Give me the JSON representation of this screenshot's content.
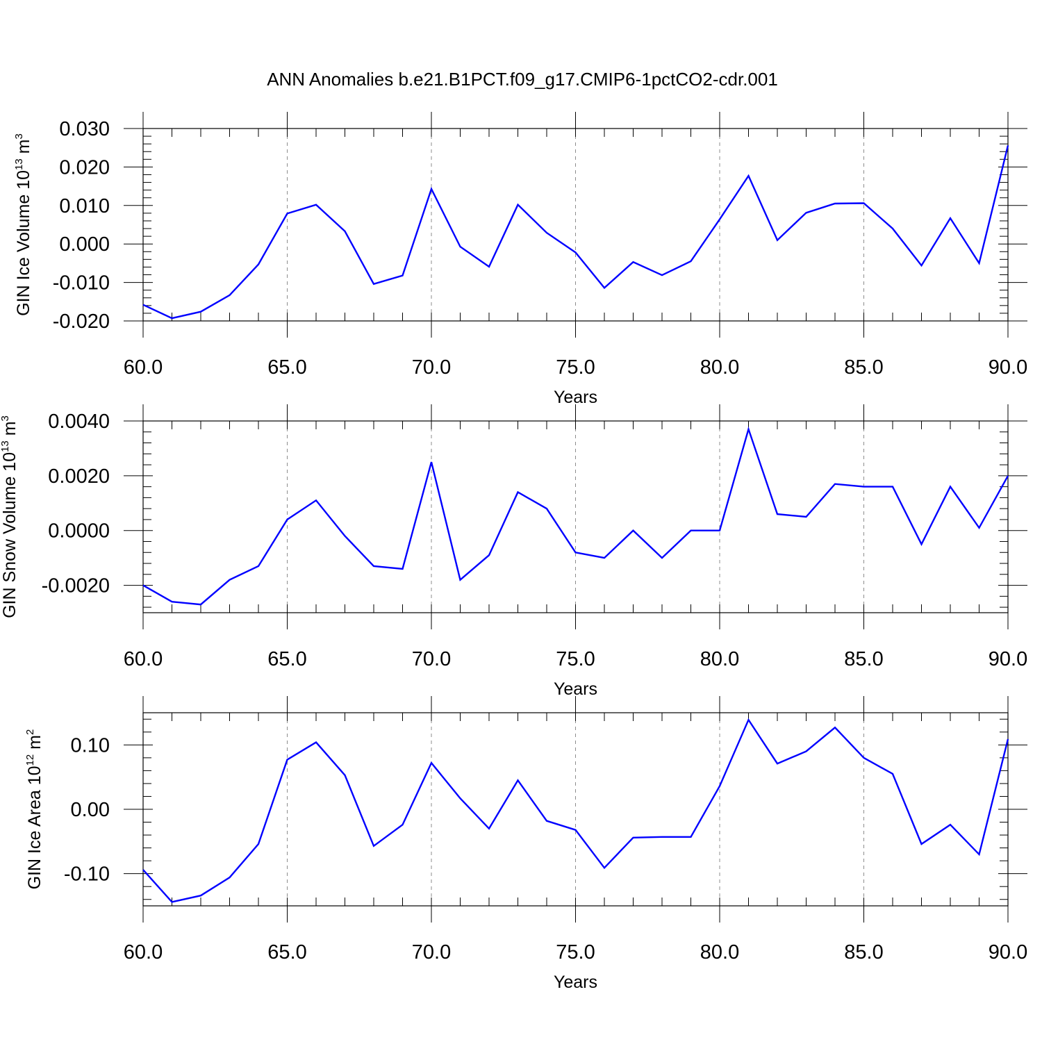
{
  "title": "ANN Anomalies b.e21.B1PCT.f09_g17.CMIP6-1pctCO2-cdr.001",
  "colors": {
    "line": "#0000ff",
    "grid": "#8c8c8c",
    "axis": "#000000"
  },
  "chart_data": [
    {
      "type": "line",
      "xlabel": "Years",
      "ylabel": {
        "main": "GIN Ice Volume 10",
        "exp1": "13",
        "unit": " m",
        "exp2": "3"
      },
      "xlim": [
        60,
        90
      ],
      "ylim": [
        -0.02,
        0.03
      ],
      "xticks": [
        60,
        65,
        70,
        75,
        80,
        85,
        90
      ],
      "xtick_labels": [
        "60.0",
        "65.0",
        "70.0",
        "75.0",
        "80.0",
        "85.0",
        "90.0"
      ],
      "yticks": [
        -0.02,
        -0.01,
        0.0,
        0.01,
        0.02,
        0.03
      ],
      "ytick_labels": [
        "-0.020",
        "-0.010",
        "0.000",
        "0.010",
        "0.020",
        "0.030"
      ],
      "grid": "vertical dashed at major x ticks",
      "x": [
        60,
        61,
        62,
        63,
        64,
        65,
        66,
        67,
        68,
        69,
        70,
        71,
        72,
        73,
        74,
        75,
        76,
        77,
        78,
        79,
        80,
        81,
        82,
        83,
        84,
        85,
        86,
        87,
        88,
        89,
        90
      ],
      "y": [
        -0.0158,
        -0.0193,
        -0.0176,
        -0.0133,
        -0.0053,
        0.0079,
        0.0102,
        0.0033,
        -0.0104,
        -0.0082,
        0.0143,
        -0.0007,
        -0.0059,
        0.0102,
        0.0029,
        -0.0022,
        -0.0114,
        -0.0047,
        -0.0081,
        -0.0045,
        0.0064,
        0.0177,
        0.001,
        0.0081,
        0.0105,
        0.0106,
        0.004,
        -0.0056,
        0.0067,
        -0.005,
        0.0256
      ]
    },
    {
      "type": "line",
      "xlabel": "Years",
      "ylabel": {
        "main": "GIN Snow Volume 10",
        "exp1": "13",
        "unit": " m",
        "exp2": "3"
      },
      "xlim": [
        60,
        90
      ],
      "ylim": [
        -0.003,
        0.004
      ],
      "xticks": [
        60,
        65,
        70,
        75,
        80,
        85,
        90
      ],
      "xtick_labels": [
        "60.0",
        "65.0",
        "70.0",
        "75.0",
        "80.0",
        "85.0",
        "90.0"
      ],
      "yticks": [
        -0.002,
        0.0,
        0.002,
        0.004
      ],
      "ytick_labels": [
        "-0.0020",
        "0.0000",
        "0.0020",
        "0.0040"
      ],
      "grid": "vertical dashed at major x ticks",
      "x": [
        60,
        61,
        62,
        63,
        64,
        65,
        66,
        67,
        68,
        69,
        70,
        71,
        72,
        73,
        74,
        75,
        76,
        77,
        78,
        79,
        80,
        81,
        82,
        83,
        84,
        85,
        86,
        87,
        88,
        89,
        90
      ],
      "y": [
        -0.002,
        -0.0026,
        -0.0027,
        -0.0018,
        -0.0013,
        0.0004,
        0.0011,
        -0.0002,
        -0.0013,
        -0.0014,
        0.0025,
        -0.0018,
        -0.0009,
        0.0014,
        0.0008,
        -0.0008,
        -0.001,
        0.0,
        -0.001,
        -0.0,
        0.0,
        0.0037,
        0.0006,
        0.0005,
        0.0017,
        0.0016,
        0.0016,
        -0.0005,
        0.0016,
        0.0001,
        0.002
      ]
    },
    {
      "type": "line",
      "xlabel": "Years",
      "ylabel": {
        "main": "GIN Ice Area 10",
        "exp1": "12",
        "unit": " m",
        "exp2": "2"
      },
      "xlim": [
        60,
        90
      ],
      "ylim": [
        -0.15,
        0.15
      ],
      "xticks": [
        60,
        65,
        70,
        75,
        80,
        85,
        90
      ],
      "xtick_labels": [
        "60.0",
        "65.0",
        "70.0",
        "75.0",
        "80.0",
        "85.0",
        "90.0"
      ],
      "yticks": [
        -0.1,
        0.0,
        0.1
      ],
      "ytick_labels": [
        "-0.10",
        "0.00",
        "0.10"
      ],
      "grid": "vertical dashed at major x ticks",
      "x": [
        60,
        61,
        62,
        63,
        64,
        65,
        66,
        67,
        68,
        69,
        70,
        71,
        72,
        73,
        74,
        75,
        76,
        77,
        78,
        79,
        80,
        81,
        82,
        83,
        84,
        85,
        86,
        87,
        88,
        89,
        90
      ],
      "y": [
        -0.094,
        -0.144,
        -0.134,
        -0.106,
        -0.054,
        0.077,
        0.104,
        0.053,
        -0.057,
        -0.024,
        0.072,
        0.017,
        -0.03,
        0.045,
        -0.018,
        -0.032,
        -0.091,
        -0.044,
        -0.043,
        -0.043,
        0.036,
        0.139,
        0.071,
        0.09,
        0.127,
        0.08,
        0.055,
        -0.054,
        -0.024,
        -0.07,
        0.109
      ]
    }
  ]
}
